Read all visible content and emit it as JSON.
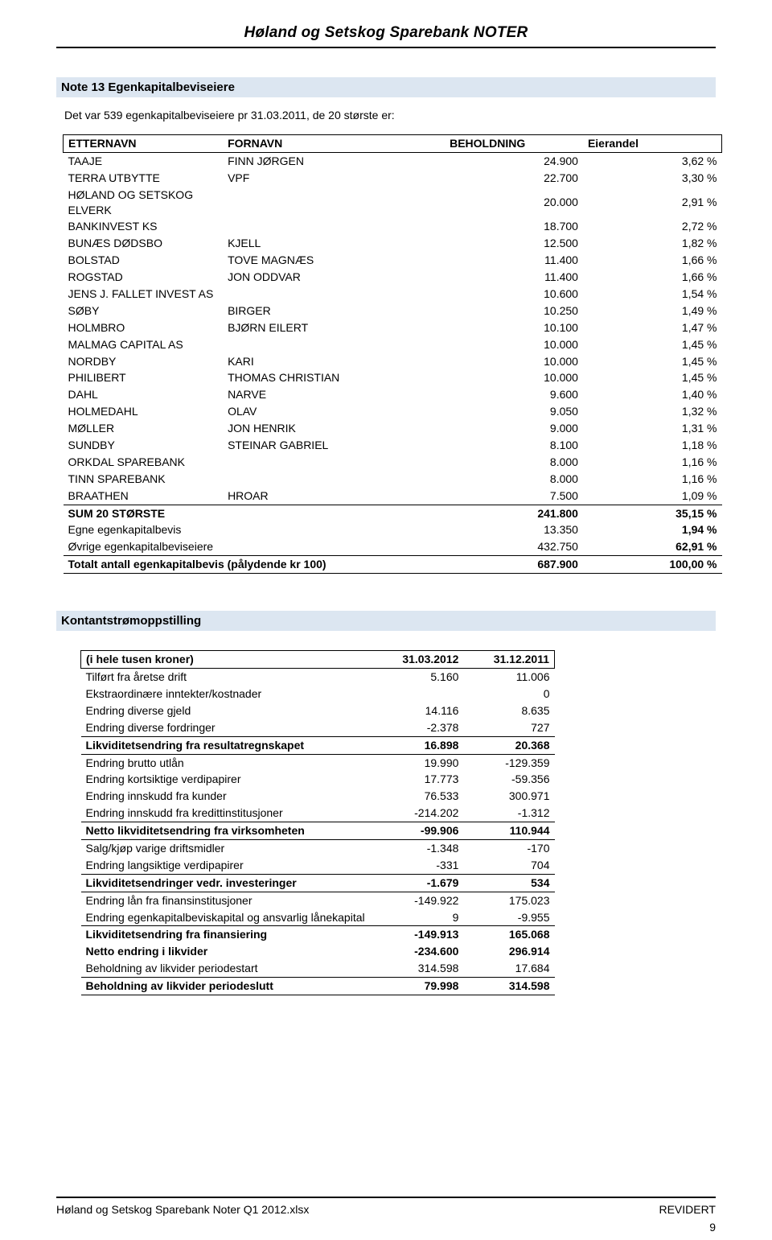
{
  "doc_header": "Høland og Setskog Sparebank NOTER",
  "note13_title": "Note 13 Egenkapitalbeviseiere",
  "intro_text": "Det var 539 egenkapitalbeviseiere pr 31.03.2011, de 20 største er:",
  "shareholders": {
    "columns": [
      "ETTERNAVN",
      "FORNAVN",
      "BEHOLDNING",
      "Eierandel"
    ],
    "rows": [
      [
        "TAAJE",
        "FINN JØRGEN",
        "24.900",
        "3,62 %"
      ],
      [
        "TERRA UTBYTTE",
        "VPF",
        "22.700",
        "3,30 %"
      ],
      [
        "HØLAND OG SETSKOG ELVERK",
        "",
        "20.000",
        "2,91 %"
      ],
      [
        "BANKINVEST KS",
        "",
        "18.700",
        "2,72 %"
      ],
      [
        "BUNÆS DØDSBO",
        "KJELL",
        "12.500",
        "1,82 %"
      ],
      [
        "BOLSTAD",
        "TOVE MAGNÆS",
        "11.400",
        "1,66 %"
      ],
      [
        "ROGSTAD",
        "JON ODDVAR",
        "11.400",
        "1,66 %"
      ],
      [
        "JENS J. FALLET INVEST AS",
        "",
        "10.600",
        "1,54 %"
      ],
      [
        "SØBY",
        "BIRGER",
        "10.250",
        "1,49 %"
      ],
      [
        "HOLMBRO",
        "BJØRN EILERT",
        "10.100",
        "1,47 %"
      ],
      [
        "MALMAG CAPITAL AS",
        "",
        "10.000",
        "1,45 %"
      ],
      [
        "NORDBY",
        "KARI",
        "10.000",
        "1,45 %"
      ],
      [
        "PHILIBERT",
        "THOMAS CHRISTIAN",
        "10.000",
        "1,45 %"
      ],
      [
        "DAHL",
        "NARVE",
        "9.600",
        "1,40 %"
      ],
      [
        "HOLMEDAHL",
        "OLAV",
        "9.050",
        "1,32 %"
      ],
      [
        "MØLLER",
        "JON HENRIK",
        "9.000",
        "1,31 %"
      ],
      [
        "SUNDBY",
        "STEINAR GABRIEL",
        "8.100",
        "1,18 %"
      ],
      [
        "ORKDAL SPAREBANK",
        "",
        "8.000",
        "1,16 %"
      ],
      [
        "TINN SPAREBANK",
        "",
        "8.000",
        "1,16 %"
      ],
      [
        "BRAATHEN",
        "HROAR",
        "7.500",
        "1,09 %"
      ]
    ],
    "sum_label": "SUM 20 STØRSTE",
    "sum_holding": "241.800",
    "sum_share": "35,15 %",
    "own_label": "Egne egenkapitalbevis",
    "own_holding": "13.350",
    "own_share": "1,94 %",
    "other_label": "Øvrige egenkapitalbeviseiere",
    "other_holding": "432.750",
    "other_share": "62,91 %",
    "total_label": "Totalt antall egenkapitalbevis (pålydende kr 100)",
    "total_holding": "687.900",
    "total_share": "100,00 %"
  },
  "cashflow_title": "Kontantstrømoppstilling",
  "cashflow": {
    "header_label": "(i hele tusen kroner)",
    "col1": "31.03.2012",
    "col2": "31.12.2011",
    "lines": [
      {
        "label": "Tilført fra åretse drift",
        "v1": "5.160",
        "v2": "11.006",
        "gap": "smallgap"
      },
      {
        "label": "Ekstraordinære inntekter/kostnader",
        "v1": "",
        "v2": "0"
      },
      {
        "label": "Endring diverse gjeld",
        "v1": "14.116",
        "v2": "8.635"
      },
      {
        "label": "Endring diverse fordringer",
        "v1": "-2.378",
        "v2": "727"
      },
      {
        "label": "Likviditetsendring fra resultatregnskapet",
        "v1": "16.898",
        "v2": "20.368",
        "bold": true,
        "topline": true
      },
      {
        "label": "Endring brutto utlån",
        "v1": "19.990",
        "v2": "-129.359",
        "topline": true
      },
      {
        "label": "Endring kortsiktige verdipapirer",
        "v1": "17.773",
        "v2": "-59.356"
      },
      {
        "label": "Endring innskudd fra kunder",
        "v1": "76.533",
        "v2": "300.971"
      },
      {
        "label": "Endring innskudd fra kredittinstitusjoner",
        "v1": "-214.202",
        "v2": "-1.312"
      },
      {
        "label": "Netto likviditetsendring fra virksomheten",
        "v1": "-99.906",
        "v2": "110.944",
        "bold": true,
        "topline": true
      },
      {
        "label": "Salg/kjøp varige driftsmidler",
        "v1": "-1.348",
        "v2": "-170",
        "topline": true
      },
      {
        "label": "Endring langsiktige verdipapirer",
        "v1": "-331",
        "v2": "704"
      },
      {
        "label": "Likviditetsendringer vedr. investeringer",
        "v1": "-1.679",
        "v2": "534",
        "bold": true,
        "topline": true
      },
      {
        "label": "Endring lån fra finansinstitusjoner",
        "v1": "-149.922",
        "v2": "175.023",
        "topline": true
      },
      {
        "label": "Endring egenkapitalbeviskapital og ansvarlig lånekapital",
        "v1": "9",
        "v2": "-9.955"
      },
      {
        "label": "Likviditetsendring fra finansiering",
        "v1": "-149.913",
        "v2": "165.068",
        "bold": true,
        "topline": true
      },
      {
        "label": "Netto endring i likvider",
        "v1": "-234.600",
        "v2": "296.914",
        "bold": true,
        "gap": "smallgap"
      },
      {
        "label": "Beholdning av likvider periodestart",
        "v1": "314.598",
        "v2": "17.684",
        "gap": "tinygap"
      },
      {
        "label": "Beholdning av likvider periodeslutt",
        "v1": "79.998",
        "v2": "314.598",
        "bold": true,
        "topline": true,
        "bottomline": true
      }
    ]
  },
  "footer_left": "Høland og Setskog Sparebank Noter Q1 2012.xlsx",
  "footer_right": "REVIDERT",
  "page_number": "9",
  "colors": {
    "section_bg": "#dce6f1",
    "text": "#000000",
    "rule": "#000000",
    "background": "#ffffff"
  },
  "fonts": {
    "family": "Arial",
    "header_size_pt": 14,
    "section_size_pt": 11,
    "body_size_pt": 10
  }
}
